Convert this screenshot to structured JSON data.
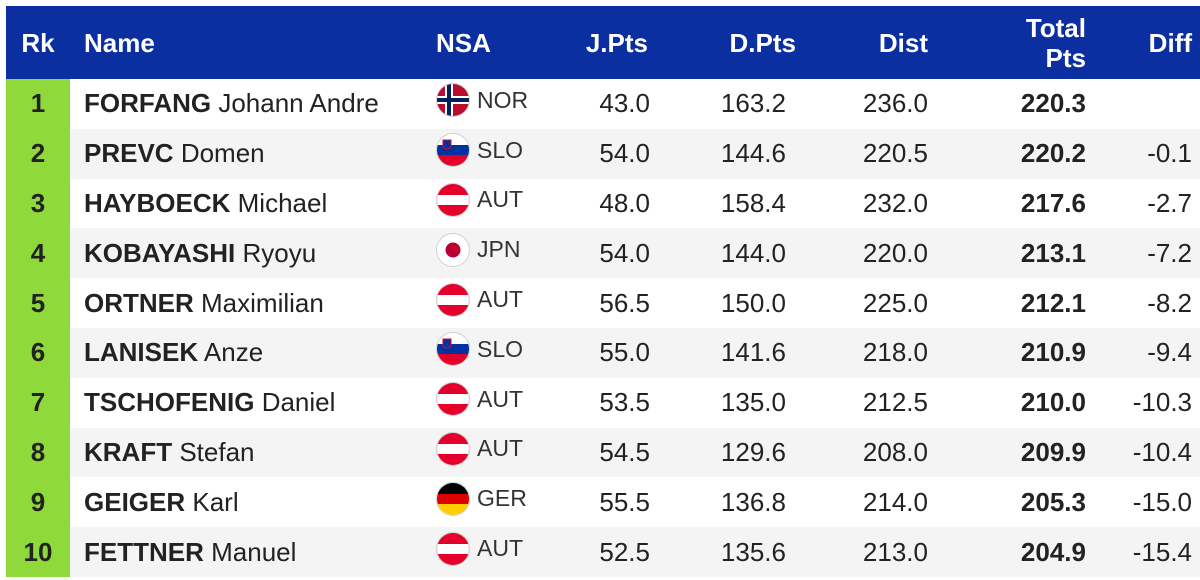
{
  "table": {
    "headers": {
      "rk": "Rk",
      "name": "Name",
      "nsa": "NSA",
      "jpts": "J.Pts",
      "dpts": "D.Pts",
      "dist": "Dist",
      "total_line1": "Total",
      "total_line2": "Pts",
      "diff": "Diff"
    },
    "colors": {
      "header_bg": "#0b2fa0",
      "rank_bg": "#8fd93b",
      "stripe_bg": "#f4f4f4"
    },
    "rows": [
      {
        "rk": "1",
        "surname": "FORFANG",
        "given": "Johann Andre",
        "nsa": "NOR",
        "flag_icon": "norway-flag-icon",
        "jpts": "43.0",
        "dpts": "163.2",
        "dist": "236.0",
        "total": "220.3",
        "diff": ""
      },
      {
        "rk": "2",
        "surname": "PREVC",
        "given": "Domen",
        "nsa": "SLO",
        "flag_icon": "slovenia-flag-icon",
        "jpts": "54.0",
        "dpts": "144.6",
        "dist": "220.5",
        "total": "220.2",
        "diff": "-0.1"
      },
      {
        "rk": "3",
        "surname": "HAYBOECK",
        "given": "Michael",
        "nsa": "AUT",
        "flag_icon": "austria-flag-icon",
        "jpts": "48.0",
        "dpts": "158.4",
        "dist": "232.0",
        "total": "217.6",
        "diff": "-2.7"
      },
      {
        "rk": "4",
        "surname": "KOBAYASHI",
        "given": "Ryoyu",
        "nsa": "JPN",
        "flag_icon": "japan-flag-icon",
        "jpts": "54.0",
        "dpts": "144.0",
        "dist": "220.0",
        "total": "213.1",
        "diff": "-7.2"
      },
      {
        "rk": "5",
        "surname": "ORTNER",
        "given": "Maximilian",
        "nsa": "AUT",
        "flag_icon": "austria-flag-icon",
        "jpts": "56.5",
        "dpts": "150.0",
        "dist": "225.0",
        "total": "212.1",
        "diff": "-8.2"
      },
      {
        "rk": "6",
        "surname": "LANISEK",
        "given": "Anze",
        "nsa": "SLO",
        "flag_icon": "slovenia-flag-icon",
        "jpts": "55.0",
        "dpts": "141.6",
        "dist": "218.0",
        "total": "210.9",
        "diff": "-9.4"
      },
      {
        "rk": "7",
        "surname": "TSCHOFENIG",
        "given": "Daniel",
        "nsa": "AUT",
        "flag_icon": "austria-flag-icon",
        "jpts": "53.5",
        "dpts": "135.0",
        "dist": "212.5",
        "total": "210.0",
        "diff": "-10.3"
      },
      {
        "rk": "8",
        "surname": "KRAFT",
        "given": "Stefan",
        "nsa": "AUT",
        "flag_icon": "austria-flag-icon",
        "jpts": "54.5",
        "dpts": "129.6",
        "dist": "208.0",
        "total": "209.9",
        "diff": "-10.4"
      },
      {
        "rk": "9",
        "surname": "GEIGER",
        "given": "Karl",
        "nsa": "GER",
        "flag_icon": "germany-flag-icon",
        "jpts": "55.5",
        "dpts": "136.8",
        "dist": "214.0",
        "total": "205.3",
        "diff": "-15.0"
      },
      {
        "rk": "10",
        "surname": "FETTNER",
        "given": "Manuel",
        "nsa": "AUT",
        "flag_icon": "austria-flag-icon",
        "jpts": "52.5",
        "dpts": "135.6",
        "dist": "213.0",
        "total": "204.9",
        "diff": "-15.4"
      }
    ]
  }
}
